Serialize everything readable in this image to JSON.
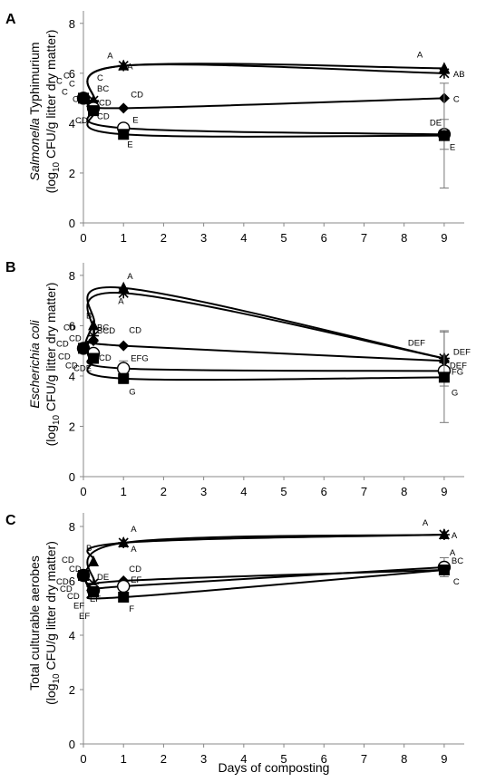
{
  "xlabel": "Days of composting",
  "chart_data": [
    {
      "type": "line",
      "panel": "A",
      "ylabel": [
        "Salmonella",
        " Typhimurium"
      ],
      "ylabel2": "(log10 CFU/g litter dry matter)",
      "ylabel_italic_part": "Salmonella",
      "xlim": [
        0,
        9.5
      ],
      "ylim": [
        0,
        8.5
      ],
      "xticks": [
        0,
        1,
        2,
        3,
        4,
        5,
        6,
        7,
        8,
        9
      ],
      "yticks": [
        0,
        2,
        4,
        6,
        8
      ],
      "series": [
        {
          "marker": "triangle",
          "x": [
            0,
            0.25,
            1,
            9
          ],
          "y": [
            5.0,
            4.9,
            6.3,
            6.2
          ],
          "err": [
            0,
            0,
            0,
            0
          ],
          "letters": [
            [
              "C",
              -22,
              -22
            ],
            [
              "BC",
              4,
              -10
            ],
            [
              "A",
              -18,
              -8
            ],
            [
              "A",
              -30,
              -12
            ]
          ]
        },
        {
          "marker": "star",
          "x": [
            0,
            0.25,
            1,
            9
          ],
          "y": [
            5.0,
            4.9,
            6.3,
            6.0
          ],
          "err": [
            0,
            0,
            0,
            0
          ],
          "letters": [
            [
              "C",
              -16,
              -13
            ],
            [
              "C",
              4,
              -22
            ],
            [
              "A",
              4,
              4
            ],
            [
              "AB",
              10,
              4
            ]
          ]
        },
        {
          "marker": "diamond",
          "x": [
            0,
            0.25,
            1,
            9
          ],
          "y": [
            5.0,
            4.85,
            4.6,
            5.0
          ],
          "err": [
            0,
            0,
            0,
            0
          ],
          "letters": [
            [
              "C",
              -30,
              -16
            ],
            [
              "CD",
              6,
              4
            ],
            [
              "CD",
              8,
              -12
            ],
            [
              "C",
              10,
              4
            ]
          ]
        },
        {
          "marker": "circle",
          "x": [
            0,
            0.25,
            1,
            9
          ],
          "y": [
            5.0,
            4.6,
            3.8,
            3.55
          ],
          "err": [
            0,
            0,
            0,
            0.6
          ],
          "letters": [
            [
              "C",
              -24,
              -4
            ],
            [
              "CD",
              4,
              12
            ],
            [
              "E",
              10,
              -6
            ],
            [
              "DE",
              -16,
              -10
            ]
          ]
        },
        {
          "marker": "square",
          "x": [
            0,
            0.25,
            1,
            9
          ],
          "y": [
            5.0,
            4.5,
            3.55,
            3.5
          ],
          "err": [
            0,
            0,
            0,
            2.1
          ],
          "letters": [
            [
              "C",
              -12,
              4
            ],
            [
              "CD",
              -20,
              14
            ],
            [
              "E",
              4,
              14
            ],
            [
              "E",
              6,
              16
            ]
          ]
        }
      ]
    },
    {
      "type": "line",
      "panel": "B",
      "ylabel": [
        "Escherichia coli",
        ""
      ],
      "ylabel2": "(log10 CFU/g litter dry matter)",
      "ylabel_italic_part": "Escherichia coli",
      "xlim": [
        0,
        9.5
      ],
      "ylim": [
        0,
        8.5
      ],
      "xticks": [
        0,
        1,
        2,
        3,
        4,
        5,
        6,
        7,
        8,
        9
      ],
      "yticks": [
        0,
        2,
        4,
        6,
        8
      ],
      "series": [
        {
          "marker": "triangle",
          "x": [
            0,
            0.25,
            1,
            9
          ],
          "y": [
            5.1,
            6.0,
            7.5,
            4.7
          ],
          "err": [
            0,
            0,
            0,
            0
          ],
          "letters": [
            [
              "CD",
              -22,
              -20
            ],
            [
              "B",
              -8,
              -8
            ],
            [
              "A",
              4,
              -10
            ],
            [
              "DEF",
              -40,
              -14
            ]
          ]
        },
        {
          "marker": "star",
          "x": [
            0,
            0.25,
            1,
            9
          ],
          "y": [
            5.1,
            5.6,
            7.3,
            4.7
          ],
          "err": [
            0,
            0,
            0,
            1.1
          ],
          "letters": [
            [
              "CD",
              -16,
              -8
            ],
            [
              "BC",
              4,
              -6
            ],
            [
              "A",
              -6,
              12
            ],
            [
              "DEF",
              10,
              -4
            ]
          ]
        },
        {
          "marker": "diamond",
          "x": [
            0,
            0.25,
            1,
            9
          ],
          "y": [
            5.1,
            5.4,
            5.2,
            4.6
          ],
          "err": [
            0,
            0,
            0,
            0
          ],
          "letters": [
            [
              "CD",
              -30,
              -2
            ],
            [
              "BCD",
              4,
              -8
            ],
            [
              "CD",
              6,
              -14
            ],
            [
              "DEF",
              6,
              8
            ]
          ]
        },
        {
          "marker": "circle",
          "x": [
            0,
            0.25,
            1,
            9
          ],
          "y": [
            5.1,
            4.9,
            4.3,
            4.2
          ],
          "err": [
            0,
            0,
            0.3,
            0
          ],
          "letters": [
            [
              "CD",
              -28,
              12
            ],
            [
              "CD",
              6,
              8
            ],
            [
              "EFG",
              8,
              -8
            ],
            [
              "FG",
              8,
              4
            ]
          ]
        },
        {
          "marker": "square",
          "x": [
            0,
            0.25,
            1,
            9
          ],
          "y": [
            5.1,
            4.7,
            3.9,
            3.95
          ],
          "err": [
            0,
            0,
            0.2,
            1.8
          ],
          "letters": [
            [
              "CD",
              -20,
              22
            ],
            [
              "CDE",
              -22,
              14
            ],
            [
              "G",
              6,
              18
            ],
            [
              "G",
              8,
              20
            ]
          ]
        }
      ]
    },
    {
      "type": "line",
      "panel": "C",
      "ylabel": [
        "Total culturable aerobes",
        ""
      ],
      "ylabel2": "(log10 CFU/g litter dry matter)",
      "ylabel_italic_part": "",
      "xlim": [
        0,
        9.5
      ],
      "ylim": [
        0,
        8.5
      ],
      "xticks": [
        0,
        1,
        2,
        3,
        4,
        5,
        6,
        7,
        8,
        9
      ],
      "yticks": [
        0,
        2,
        4,
        6,
        8
      ],
      "series": [
        {
          "marker": "triangle",
          "x": [
            0,
            0.25,
            1,
            9
          ],
          "y": [
            6.2,
            6.7,
            7.4,
            7.7
          ],
          "err": [
            0,
            0,
            0,
            0
          ],
          "letters": [
            [
              "CD",
              -24,
              -14
            ],
            [
              "B",
              -8,
              -12
            ],
            [
              "A",
              8,
              -12
            ],
            [
              "A",
              -24,
              -10
            ]
          ]
        },
        {
          "marker": "star",
          "x": [
            0,
            0.25,
            1,
            9
          ],
          "y": [
            6.2,
            5.9,
            7.4,
            7.7
          ],
          "err": [
            0,
            0,
            0,
            0
          ],
          "letters": [
            [
              "CD",
              -16,
              -4
            ],
            [
              "DE",
              4,
              -4
            ],
            [
              "A",
              8,
              10
            ],
            [
              "A",
              8,
              4
            ]
          ]
        },
        {
          "marker": "diamond",
          "x": [
            0,
            0.25,
            1,
            9
          ],
          "y": [
            6.2,
            5.7,
            6.0,
            6.4
          ],
          "err": [
            0,
            0,
            0,
            0
          ],
          "letters": [
            [
              "CD",
              -30,
              10
            ],
            [
              "EF",
              -4,
              14
            ],
            [
              "CD",
              6,
              -10
            ],
            [
              "A",
              6,
              -16
            ]
          ]
        },
        {
          "marker": "circle",
          "x": [
            0,
            0.25,
            1,
            9
          ],
          "y": [
            6.2,
            5.65,
            5.8,
            6.5
          ],
          "err": [
            0,
            0,
            0,
            0.35
          ],
          "letters": [
            [
              "CD",
              -26,
              18
            ],
            [
              "EF",
              -22,
              20
            ],
            [
              "EF",
              8,
              -4
            ],
            [
              "BC",
              8,
              -4
            ]
          ]
        },
        {
          "marker": "square",
          "x": [
            0,
            0.25,
            1,
            9
          ],
          "y": [
            6.2,
            5.6,
            5.4,
            6.4
          ],
          "err": [
            0,
            0,
            0,
            0
          ],
          "letters": [
            [
              "CD",
              -18,
              26
            ],
            [
              "EF",
              -16,
              30
            ],
            [
              "F",
              6,
              16
            ],
            [
              "C",
              10,
              16
            ]
          ]
        }
      ]
    }
  ]
}
